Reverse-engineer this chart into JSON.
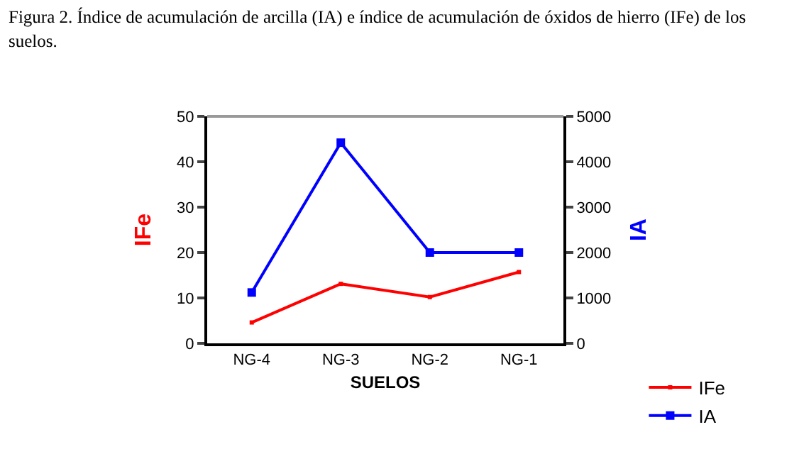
{
  "chart_data": {
    "type": "line",
    "title": "Figura 2. Índice de acumulación de arcilla (IA) e índice de acumulación de óxidos de hierro (IFe) de los suelos.",
    "xlabel": "SUELOS",
    "ylabel": "IFe",
    "y2label": "IA",
    "categories": [
      "NG-4",
      "NG-3",
      "NG-2",
      "NG-1"
    ],
    "series": [
      {
        "name": "IFe",
        "color": "#ff0000",
        "values": [
          4.6,
          13.1,
          10.2,
          15.7
        ]
      },
      {
        "name": "IA",
        "color": "#0000ff",
        "values": [
          1120,
          4420,
          2000,
          2000
        ],
        "axis": "y2"
      }
    ],
    "ylim": [
      0,
      50
    ],
    "yticks": [
      0,
      10,
      20,
      30,
      40,
      50
    ],
    "y2lim": [
      0,
      5000
    ],
    "y2ticks": [
      0,
      1000,
      2000,
      3000,
      4000,
      5000
    ],
    "grid": false,
    "legend": "bottom right",
    "marker": "square",
    "line_style": "solid"
  }
}
